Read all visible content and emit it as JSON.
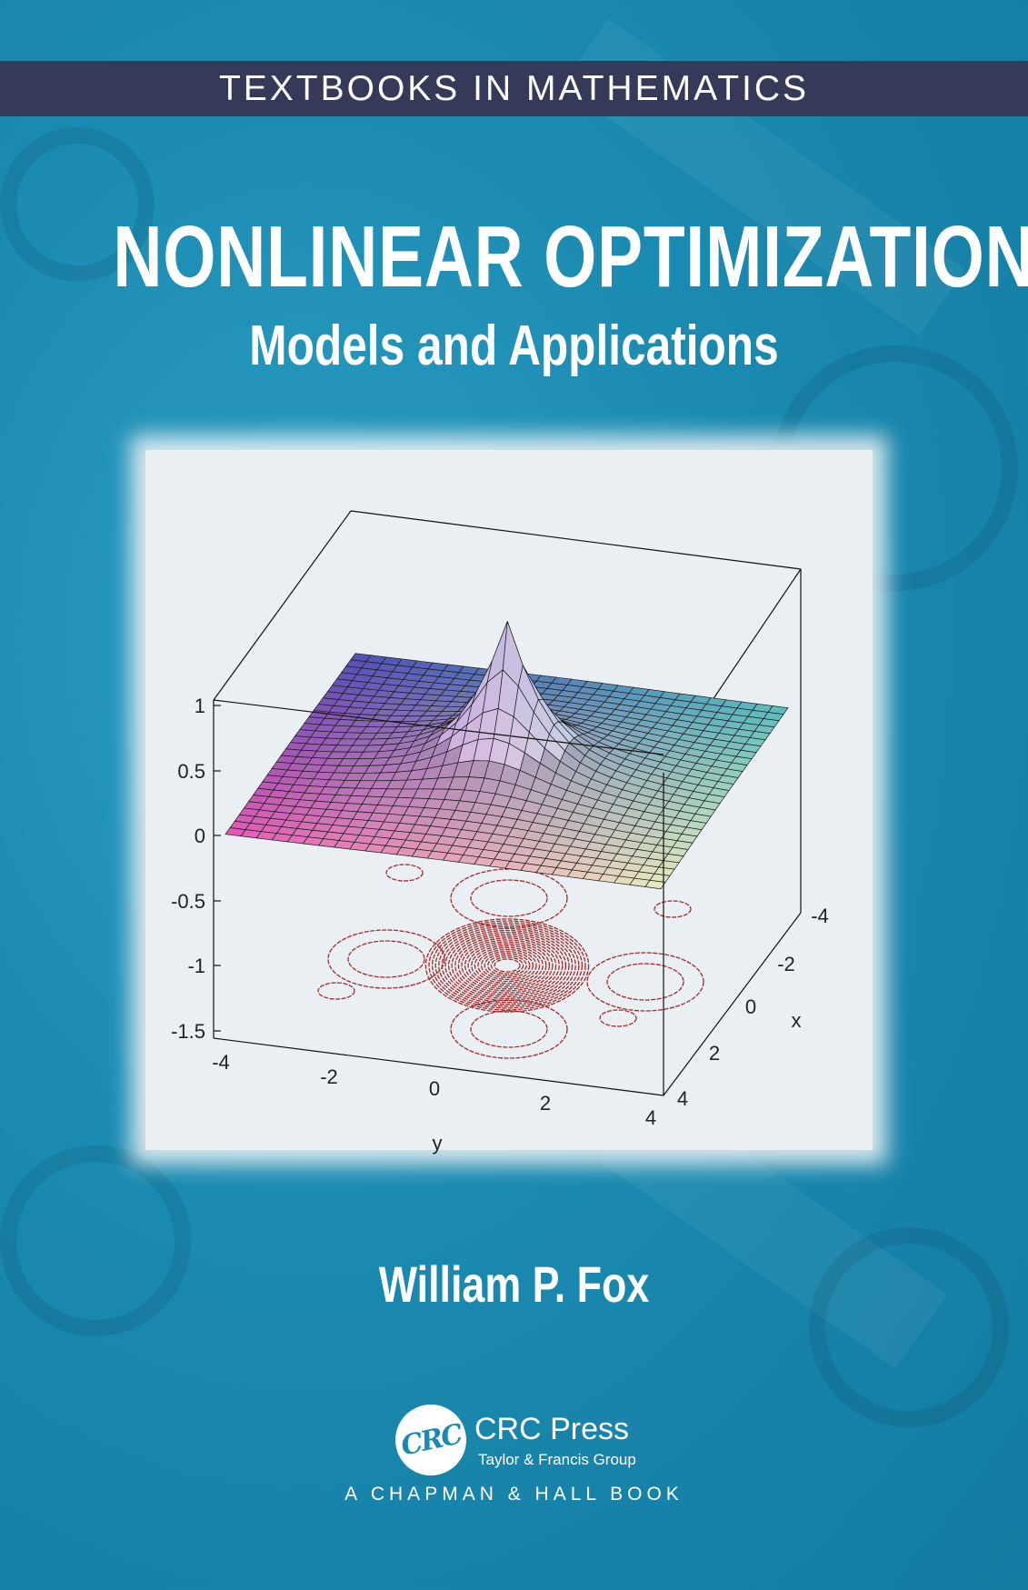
{
  "series_label": "TEXTBOOKS IN MATHEMATICS",
  "title": "NONLINEAR OPTIMIZATION",
  "subtitle": "Models and Applications",
  "author": "William P. Fox",
  "publisher": {
    "logo_text": "CRC",
    "name": "CRC Press",
    "group": "Taylor & Francis Group",
    "imprint": "A CHAPMAN & HALL BOOK"
  },
  "colors": {
    "background": "#1b8ab0",
    "banner": "#343a57",
    "contour": "#a32a2a"
  },
  "figure": {
    "z_ticks": [
      "1",
      "0.5",
      "0",
      "-0.5",
      "-1",
      "-1.5"
    ],
    "y_ticks": [
      "-4",
      "-2",
      "0",
      "2",
      "4"
    ],
    "x_ticks": [
      "-4",
      "-2",
      "0",
      "2",
      "4"
    ],
    "y_label": "y",
    "x_label": "x"
  }
}
